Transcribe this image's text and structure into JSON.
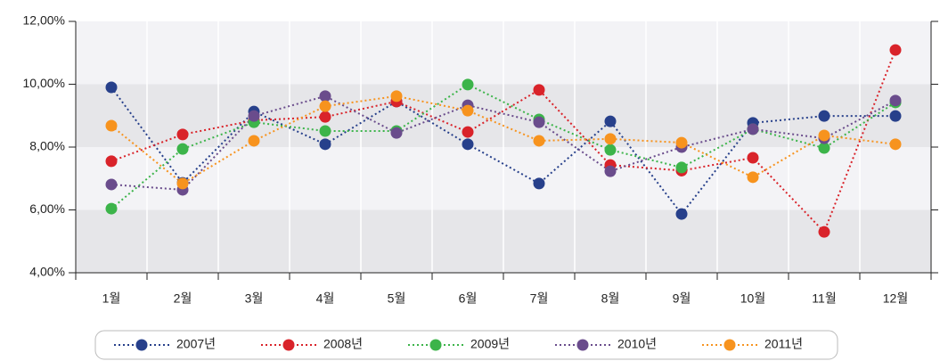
{
  "chart_data": {
    "type": "line",
    "categories": [
      "1월",
      "2월",
      "3월",
      "4월",
      "5월",
      "6월",
      "7월",
      "8월",
      "9월",
      "10월",
      "11월",
      "12월"
    ],
    "series": [
      {
        "name": "2007년",
        "color": "#27408b",
        "values": [
          9.9,
          6.86,
          9.13,
          8.09,
          9.45,
          8.09,
          6.84,
          8.82,
          5.87,
          8.77,
          8.99,
          8.99
        ]
      },
      {
        "name": "2008년",
        "color": "#d9232a",
        "values": [
          7.55,
          8.4,
          8.85,
          8.96,
          9.45,
          8.48,
          9.82,
          7.43,
          7.25,
          7.66,
          5.3,
          11.09
        ]
      },
      {
        "name": "2009년",
        "color": "#3cb44a",
        "values": [
          6.04,
          7.94,
          8.79,
          8.51,
          8.51,
          9.99,
          8.88,
          7.91,
          7.35,
          8.57,
          7.97,
          9.42
        ]
      },
      {
        "name": "2010년",
        "color": "#6a4c8c",
        "values": [
          6.81,
          6.64,
          8.99,
          9.62,
          8.45,
          9.33,
          8.79,
          7.23,
          8.0,
          8.57,
          8.28,
          9.48
        ]
      },
      {
        "name": "2011년",
        "color": "#f7931e",
        "values": [
          8.68,
          6.84,
          8.2,
          9.3,
          9.62,
          9.16,
          8.2,
          8.26,
          8.14,
          7.04,
          8.37,
          8.09
        ]
      }
    ],
    "ylim": [
      4,
      12
    ],
    "yticks": [
      {
        "value": 4,
        "label": "4,00%"
      },
      {
        "value": 6,
        "label": "6,00%"
      },
      {
        "value": 8,
        "label": "8,00%"
      },
      {
        "value": 10,
        "label": "10,00%"
      },
      {
        "value": 12,
        "label": "12,00%"
      }
    ],
    "grid": true,
    "legend": "bottom"
  }
}
